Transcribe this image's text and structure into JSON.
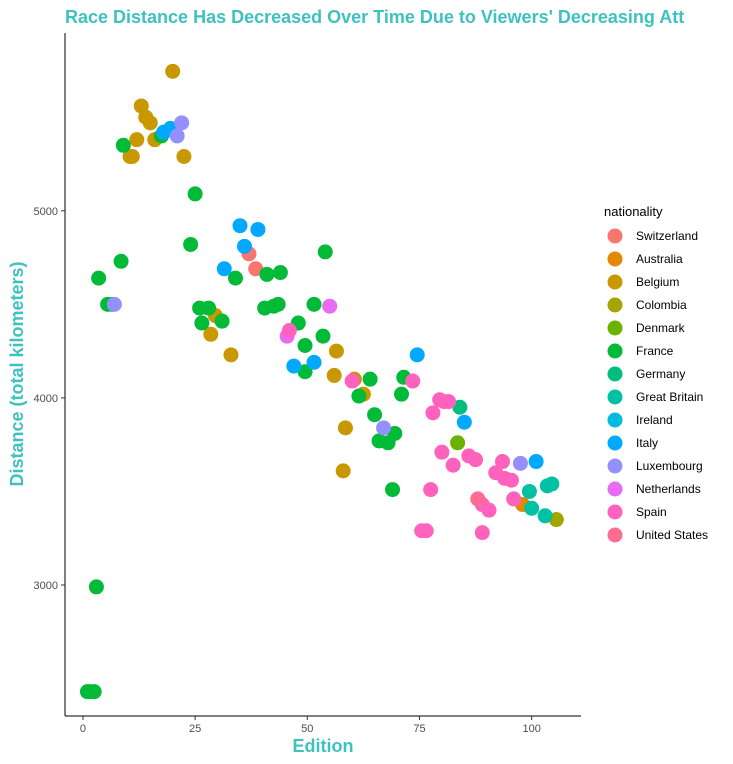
{
  "chart_data": {
    "type": "scatter",
    "title": "Race Distance Has Decreased Over Time Due to Viewers' Decreasing Att",
    "xlabel": "Edition",
    "ylabel": "Distance (total kilometers)",
    "xlim": [
      -4,
      111
    ],
    "ylim": [
      2300,
      5950
    ],
    "x_ticks": [
      0,
      25,
      50,
      75,
      100
    ],
    "y_ticks": [
      3000,
      4000,
      5000
    ],
    "grid": false,
    "legend_position": "right",
    "legend_title": "nationality",
    "title_color": "#3EC2C0",
    "series": [
      {
        "name": " Switzerland",
        "color": "#F8766D",
        "points": [
          [
            37,
            4770
          ],
          [
            38.5,
            4690
          ]
        ]
      },
      {
        "name": "Australia",
        "color": "#E58700",
        "points": [
          [
            98,
            3430
          ]
        ]
      },
      {
        "name": "Belgium",
        "color": "#C99800",
        "points": [
          [
            20,
            5745
          ],
          [
            13,
            5560
          ],
          [
            14,
            5500
          ],
          [
            15,
            5470
          ],
          [
            16,
            5380
          ],
          [
            12,
            5380
          ],
          [
            11,
            5290
          ],
          [
            10.5,
            5290
          ],
          [
            22.5,
            5290
          ],
          [
            29.5,
            4440
          ],
          [
            28.5,
            4340
          ],
          [
            33,
            4230
          ],
          [
            56.5,
            4250
          ],
          [
            56,
            4120
          ],
          [
            60.5,
            4100
          ],
          [
            62.5,
            4020
          ],
          [
            58.5,
            3840
          ],
          [
            58,
            3610
          ]
        ]
      },
      {
        "name": "Colombia",
        "color": "#A3A500",
        "points": [
          [
            105.5,
            3350
          ]
        ]
      },
      {
        "name": "Denmark",
        "color": "#6BB100",
        "points": [
          [
            83.5,
            3760
          ]
        ]
      },
      {
        "name": "France",
        "color": "#00BA38",
        "points": [
          [
            1,
            2430
          ],
          [
            1.5,
            2430
          ],
          [
            2.5,
            2430
          ],
          [
            3,
            2990
          ],
          [
            3.5,
            4640
          ],
          [
            5.5,
            4500
          ],
          [
            6.5,
            4500
          ],
          [
            8.5,
            4730
          ],
          [
            9,
            5350
          ],
          [
            17.5,
            5400
          ],
          [
            25,
            5090
          ],
          [
            24,
            4820
          ],
          [
            26,
            4480
          ],
          [
            28,
            4480
          ],
          [
            26.5,
            4400
          ],
          [
            31,
            4410
          ],
          [
            34,
            4640
          ],
          [
            40.5,
            4480
          ],
          [
            41,
            4660
          ],
          [
            42.5,
            4490
          ],
          [
            43.5,
            4500
          ],
          [
            44,
            4670
          ],
          [
            48,
            4400
          ],
          [
            49.5,
            4280
          ],
          [
            49.5,
            4140
          ],
          [
            51.5,
            4500
          ],
          [
            53.5,
            4330
          ],
          [
            54,
            4780
          ],
          [
            61.5,
            4010
          ],
          [
            64,
            4100
          ],
          [
            65,
            3910
          ],
          [
            66,
            3770
          ],
          [
            68,
            3760
          ],
          [
            69.5,
            3810
          ],
          [
            69,
            3510
          ],
          [
            71.5,
            4110
          ],
          [
            71,
            4020
          ]
        ]
      },
      {
        "name": "Germany",
        "color": "#00BF7D",
        "points": [
          [
            84,
            3950
          ]
        ]
      },
      {
        "name": "Great Britain",
        "color": "#00C1A3",
        "points": [
          [
            99.5,
            3500
          ],
          [
            100,
            3410
          ],
          [
            103,
            3370
          ],
          [
            103.5,
            3530
          ],
          [
            104.5,
            3540
          ]
        ]
      },
      {
        "name": "Ireland",
        "color": "#00BAE0",
        "points": []
      },
      {
        "name": "Italy",
        "color": "#00A9FF",
        "points": [
          [
            18,
            5420
          ],
          [
            19.5,
            5440
          ],
          [
            31.5,
            4690
          ],
          [
            35,
            4920
          ],
          [
            36,
            4810
          ],
          [
            39,
            4900
          ],
          [
            47,
            4170
          ],
          [
            51.5,
            4190
          ],
          [
            74.5,
            4230
          ],
          [
            85,
            3870
          ],
          [
            101,
            3660
          ]
        ]
      },
      {
        "name": "Luxembourg",
        "color": "#9590FF",
        "points": [
          [
            7,
            4500
          ],
          [
            21,
            5400
          ],
          [
            22,
            5470
          ],
          [
            67,
            3840
          ],
          [
            97.5,
            3650
          ]
        ]
      },
      {
        "name": "Netherlands",
        "color": "#E76BF3",
        "points": [
          [
            45.5,
            4330
          ],
          [
            55,
            4490
          ]
        ]
      },
      {
        "name": "Spain",
        "color": "#FF62BC",
        "points": [
          [
            46,
            4360
          ],
          [
            60,
            4090
          ],
          [
            73.5,
            4090
          ],
          [
            78,
            3920
          ],
          [
            79.5,
            3990
          ],
          [
            80.5,
            3980
          ],
          [
            81.5,
            3980
          ],
          [
            80,
            3710
          ],
          [
            82.5,
            3640
          ],
          [
            77.5,
            3510
          ],
          [
            75.5,
            3290
          ],
          [
            76.5,
            3290
          ],
          [
            86,
            3690
          ],
          [
            87.5,
            3670
          ],
          [
            92,
            3600
          ],
          [
            93.5,
            3660
          ],
          [
            94,
            3570
          ],
          [
            95.5,
            3560
          ],
          [
            96,
            3460
          ],
          [
            89,
            3430
          ],
          [
            90.5,
            3400
          ],
          [
            89,
            3280
          ]
        ]
      },
      {
        "name": "United States",
        "color": "#FF6C91",
        "points": [
          [
            88,
            3460
          ]
        ]
      }
    ]
  }
}
